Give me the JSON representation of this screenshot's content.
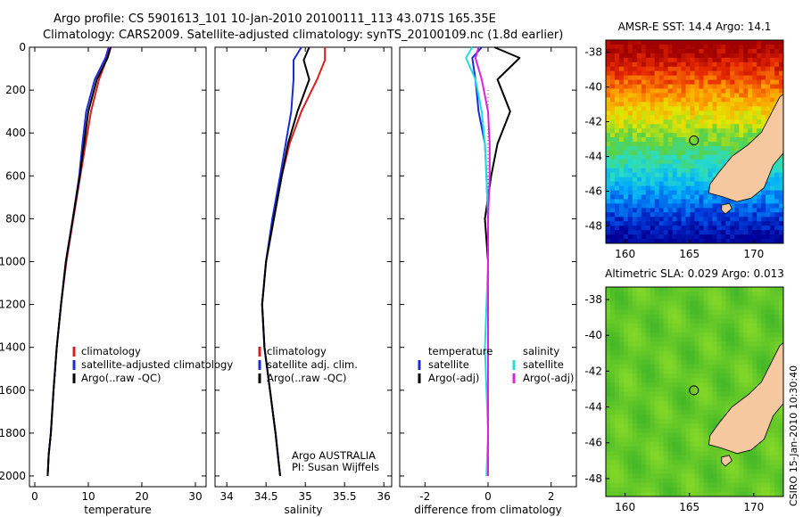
{
  "header": {
    "line1": "Argo profile: CS 5901613_101 10-Jan-2010 20100111_113 43.071S 165.35E",
    "line2": "Climatology: CARS2009. Satellite-adjusted climatology: synTS_20100109.nc (1.8d earlier)"
  },
  "side_label": "CSIRO 15-Jan-2010 10:30:40",
  "colors": {
    "climatology": "#d62020",
    "satellite": "#1a2bd8",
    "argo": "#000000",
    "satellite_salinity": "#22dddd",
    "argo_adj_salinity": "#dd22dd"
  },
  "chart_data": [
    {
      "type": "line",
      "xlabel": "temperature",
      "xlim": [
        -1,
        32
      ],
      "ylim": [
        2050,
        0
      ],
      "xticks": [
        0,
        10,
        20,
        30
      ],
      "yticks": [
        0,
        200,
        400,
        600,
        800,
        1000,
        1200,
        1400,
        1600,
        1800,
        2000
      ],
      "legend": [
        "climatology",
        "satellite-adjusted climatology",
        "Argo(..raw -QC)"
      ],
      "series": [
        {
          "name": "climatology",
          "color": "#d62020",
          "x": [
            14.0,
            13.5,
            12.0,
            10.5,
            9.5,
            8.5,
            7.2,
            5.9,
            4.9,
            4.1,
            3.5,
            3.0,
            2.6,
            2.5,
            2.4
          ],
          "y": [
            0,
            50,
            150,
            300,
            450,
            600,
            800,
            1000,
            1200,
            1400,
            1600,
            1800,
            1900,
            1950,
            2000
          ]
        },
        {
          "name": "satellite-adjusted climatology",
          "color": "#1a2bd8",
          "x": [
            13.8,
            13.2,
            11.2,
            9.6,
            8.9,
            8.3,
            7.1,
            5.8,
            4.9,
            4.1,
            3.5,
            3.0,
            2.6,
            2.5,
            2.4
          ],
          "y": [
            0,
            50,
            150,
            300,
            450,
            600,
            800,
            1000,
            1200,
            1400,
            1600,
            1800,
            1900,
            1950,
            2000
          ]
        },
        {
          "name": "Argo(..raw -QC)",
          "color": "#000000",
          "x": [
            14.2,
            13.6,
            11.6,
            10.0,
            9.2,
            8.4,
            7.1,
            5.8,
            4.9,
            4.1,
            3.5,
            3.0,
            2.6,
            2.5,
            2.4
          ],
          "y": [
            0,
            50,
            150,
            300,
            450,
            600,
            800,
            1000,
            1200,
            1400,
            1600,
            1800,
            1900,
            1950,
            2000
          ]
        }
      ]
    },
    {
      "type": "line",
      "xlabel": "salinity",
      "xlim": [
        33.85,
        36.1
      ],
      "ylim": [
        2050,
        0
      ],
      "xticks": [
        34,
        34.5,
        35,
        35.5,
        36
      ],
      "yticks": [
        0,
        200,
        400,
        600,
        800,
        1000,
        1200,
        1400,
        1600,
        1800,
        2000
      ],
      "legend": [
        "climatology",
        "satellite adj. clim.",
        "Argo(..raw -QC)"
      ],
      "annotation": [
        "Argo AUSTRALIA",
        "PI: Susan Wijffels"
      ],
      "series": [
        {
          "name": "climatology",
          "color": "#d62020",
          "x": [
            35.25,
            35.25,
            35.15,
            34.95,
            34.8,
            34.7,
            34.6,
            34.5,
            34.45,
            34.48,
            34.55,
            34.62,
            34.68
          ],
          "y": [
            0,
            60,
            150,
            300,
            450,
            600,
            800,
            1000,
            1200,
            1400,
            1600,
            1800,
            2000
          ]
        },
        {
          "name": "satellite adj. clim.",
          "color": "#1a2bd8",
          "x": [
            34.95,
            34.85,
            34.85,
            34.82,
            34.75,
            34.68,
            34.58,
            34.5,
            34.45,
            34.48,
            34.55,
            34.62,
            34.68
          ],
          "y": [
            0,
            60,
            150,
            300,
            450,
            600,
            800,
            1000,
            1200,
            1400,
            1600,
            1800,
            2000
          ]
        },
        {
          "name": "Argo(..raw -QC)",
          "color": "#000000",
          "x": [
            35.05,
            34.98,
            35.05,
            34.9,
            34.78,
            34.7,
            34.6,
            34.5,
            34.45,
            34.48,
            34.55,
            34.62,
            34.68
          ],
          "y": [
            0,
            60,
            150,
            300,
            450,
            600,
            800,
            1000,
            1200,
            1400,
            1600,
            1800,
            2000
          ]
        }
      ]
    },
    {
      "type": "line",
      "xlabel": "difference from climatology",
      "xlim": [
        -2.8,
        2.8
      ],
      "ylim": [
        2050,
        0
      ],
      "xticks": [
        -2,
        0,
        2
      ],
      "yticks": [
        0,
        200,
        400,
        600,
        800,
        1000,
        1200,
        1400,
        1600,
        1800,
        2000
      ],
      "legend_groups": [
        {
          "heading": "temperature",
          "entries": [
            "satellite",
            "Argo(-adj)"
          ]
        },
        {
          "heading": "salinity",
          "entries": [
            "satellite",
            "Argo(-adj)"
          ]
        }
      ],
      "series": [
        {
          "name": "satellite",
          "group": "temperature",
          "color": "#1a2bd8",
          "x": [
            -0.2,
            -0.5,
            -0.4,
            -0.3,
            -0.1,
            -0.05,
            0.0,
            0.0,
            0.0,
            0.0,
            0.0
          ],
          "y": [
            0,
            50,
            150,
            300,
            450,
            600,
            800,
            1000,
            1400,
            1800,
            2000
          ]
        },
        {
          "name": "Argo(-adj)",
          "group": "temperature",
          "color": "#000000",
          "x": [
            0.2,
            1.0,
            0.3,
            0.7,
            0.3,
            0.1,
            -0.1,
            0.0,
            0.0,
            0.0,
            0.0
          ],
          "y": [
            0,
            50,
            150,
            300,
            450,
            600,
            800,
            1000,
            1400,
            1800,
            2000
          ]
        },
        {
          "name": "satellite",
          "group": "salinity",
          "color": "#22dddd",
          "x": [
            -0.5,
            -0.7,
            -0.4,
            -0.2,
            -0.1,
            -0.05,
            0.0,
            0.0,
            -0.1,
            0.0,
            -0.05
          ],
          "y": [
            0,
            50,
            150,
            300,
            450,
            600,
            800,
            1000,
            1400,
            1800,
            2000
          ]
        },
        {
          "name": "Argo(-adj)",
          "group": "salinity",
          "color": "#dd22dd",
          "x": [
            -0.3,
            -0.4,
            -0.2,
            0.0,
            0.05,
            0.05,
            0.0,
            0.0,
            0.0,
            0.0,
            0.0
          ],
          "y": [
            0,
            50,
            150,
            300,
            450,
            600,
            800,
            1000,
            1400,
            1800,
            2000
          ]
        }
      ]
    },
    {
      "type": "heatmap",
      "title": "AMSR-E SST: 14.4 Argo: 14.1",
      "xlim": [
        158.5,
        172.3
      ],
      "ylim": [
        -49.0,
        -37.3
      ],
      "xticks": [
        160,
        165,
        170
      ],
      "yticks": [
        -48,
        -46,
        -44,
        -42,
        -40,
        -38
      ],
      "marker": {
        "lon": 165.35,
        "lat": -43.071
      }
    },
    {
      "type": "heatmap",
      "title": "Altimetric SLA: 0.029 Argo: 0.013",
      "xlim": [
        158.5,
        172.3
      ],
      "ylim": [
        -49.0,
        -37.3
      ],
      "xticks": [
        160,
        165,
        170
      ],
      "yticks": [
        -48,
        -46,
        -44,
        -42,
        -40,
        -38
      ],
      "marker": {
        "lon": 165.35,
        "lat": -43.071
      }
    }
  ]
}
